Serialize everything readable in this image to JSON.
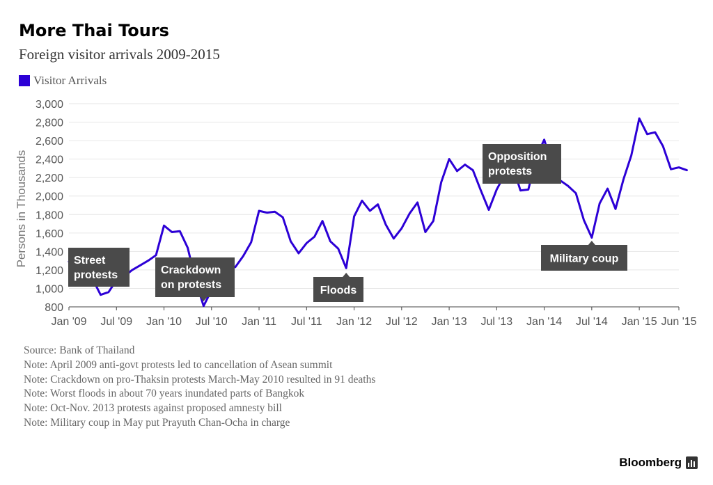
{
  "header": {
    "title": "More Thai Tours",
    "subtitle": "Foreign visitor arrivals 2009-2015"
  },
  "legend": {
    "label": "Visitor Arrivals",
    "color": "#2c00d6"
  },
  "notes": [
    "Source: Bank of Thailand",
    "Note: April 2009 anti-govt protests led to cancellation of Asean summit",
    "Note: Crackdown on pro-Thaksin protests March-May 2010 resulted in 91 deaths",
    "Note: Worst floods in about 70 years inundated parts of Bangkok",
    "Note: Oct-Nov. 2013 protests against proposed amnesty bill",
    "Note: Military coup in May put Prayuth Chan-Ocha in charge"
  ],
  "brand": {
    "name": "Bloomberg",
    "icon": "bloomberg-terminal-icon"
  },
  "chart_data": {
    "type": "line",
    "ylabel": "Persons in Thousands",
    "xlabel": "",
    "ylim": [
      800,
      3000
    ],
    "yticks": [
      800,
      1000,
      1200,
      1400,
      1600,
      1800,
      2000,
      2200,
      2400,
      2600,
      2800,
      3000
    ],
    "ytick_labels": [
      "800",
      "1,000",
      "1,200",
      "1,400",
      "1,600",
      "1,800",
      "2,000",
      "2,200",
      "2,400",
      "2,600",
      "2,800",
      "3,000"
    ],
    "xticks": [
      {
        "label": "Jan '09",
        "month": 0
      },
      {
        "label": "Jul '09",
        "month": 6
      },
      {
        "label": "Jan '10",
        "month": 12
      },
      {
        "label": "Jul '10",
        "month": 18
      },
      {
        "label": "Jan '11",
        "month": 24
      },
      {
        "label": "Jul '11",
        "month": 30
      },
      {
        "label": "Jan '12",
        "month": 36
      },
      {
        "label": "Jul '12",
        "month": 42
      },
      {
        "label": "Jan '13",
        "month": 48
      },
      {
        "label": "Jul '13",
        "month": 54
      },
      {
        "label": "Jan '14",
        "month": 60
      },
      {
        "label": "Jul '14",
        "month": 66
      },
      {
        "label": "Jan '15",
        "month": 72
      },
      {
        "label": "Jun '15",
        "month": 77
      }
    ],
    "grid": true,
    "legend_position": "top-left",
    "series": [
      {
        "name": "Visitor Arrivals",
        "color": "#2c00d6",
        "values": [
          1290,
          1170,
          1240,
          1100,
          930,
          960,
          1090,
          1130,
          1200,
          1250,
          1300,
          1360,
          1680,
          1610,
          1620,
          1440,
          1080,
          810,
          980,
          1260,
          1270,
          1230,
          1350,
          1500,
          1840,
          1820,
          1830,
          1770,
          1510,
          1380,
          1490,
          1560,
          1730,
          1510,
          1430,
          1220,
          1780,
          1950,
          1840,
          1910,
          1690,
          1540,
          1650,
          1810,
          1930,
          1610,
          1730,
          2150,
          2400,
          2270,
          2340,
          2280,
          2060,
          1850,
          2070,
          2230,
          2330,
          2060,
          2070,
          2420,
          2610,
          2330,
          2170,
          2110,
          2030,
          1740,
          1550,
          1920,
          2080,
          1860,
          2180,
          2440,
          2840,
          2670,
          2690,
          2540,
          2290,
          2310,
          2280
        ]
      }
    ],
    "annotations": [
      {
        "label": "Street\nprotests",
        "month": 0,
        "value": 1290
      },
      {
        "label": "Crackdown\non protests",
        "month": 17,
        "value": 810
      },
      {
        "label": "Floods",
        "month": 35,
        "value": 1220
      },
      {
        "label": "Opposition\nprotests",
        "month": 58,
        "value": 2070
      },
      {
        "label": "Military coup",
        "month": 66,
        "value": 1550
      }
    ]
  }
}
